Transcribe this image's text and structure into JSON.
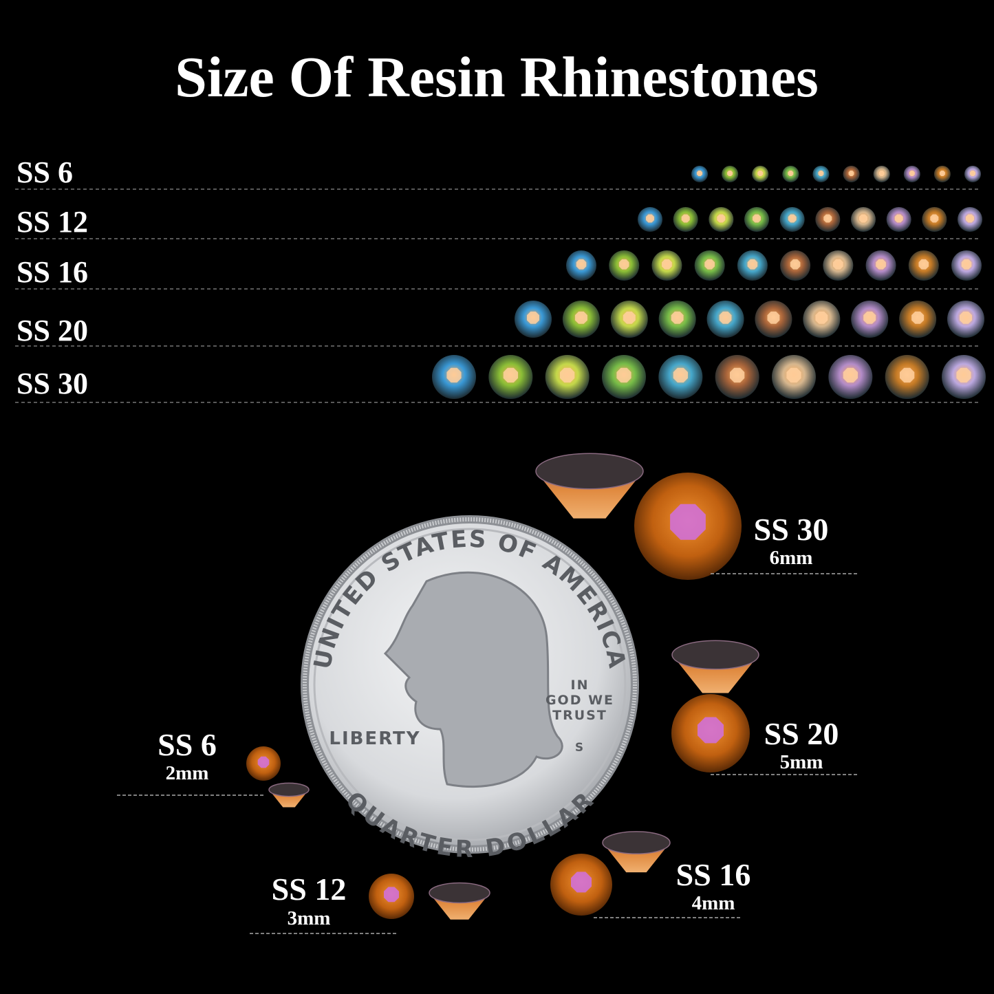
{
  "title": "Size Of Resin Rhinestones",
  "rows": [
    {
      "label": "SS 6"
    },
    {
      "label": "SS 12"
    },
    {
      "label": "SS 16"
    },
    {
      "label": "SS 20"
    },
    {
      "label": "SS 30"
    }
  ],
  "comparison": [
    {
      "label": "SS 30",
      "size": "6mm"
    },
    {
      "label": "SS 20",
      "size": "5mm"
    },
    {
      "label": "SS 16",
      "size": "4mm"
    },
    {
      "label": "SS 12",
      "size": "3mm"
    },
    {
      "label": "SS 6",
      "size": "2mm"
    }
  ],
  "coin": {
    "top": "UNITED STATES OF AMERICA",
    "motto": [
      "IN",
      "GOD WE",
      "TRUST"
    ],
    "left": "LIBERTY",
    "mint": "S",
    "bottom": "QUARTER DOLLAR"
  }
}
